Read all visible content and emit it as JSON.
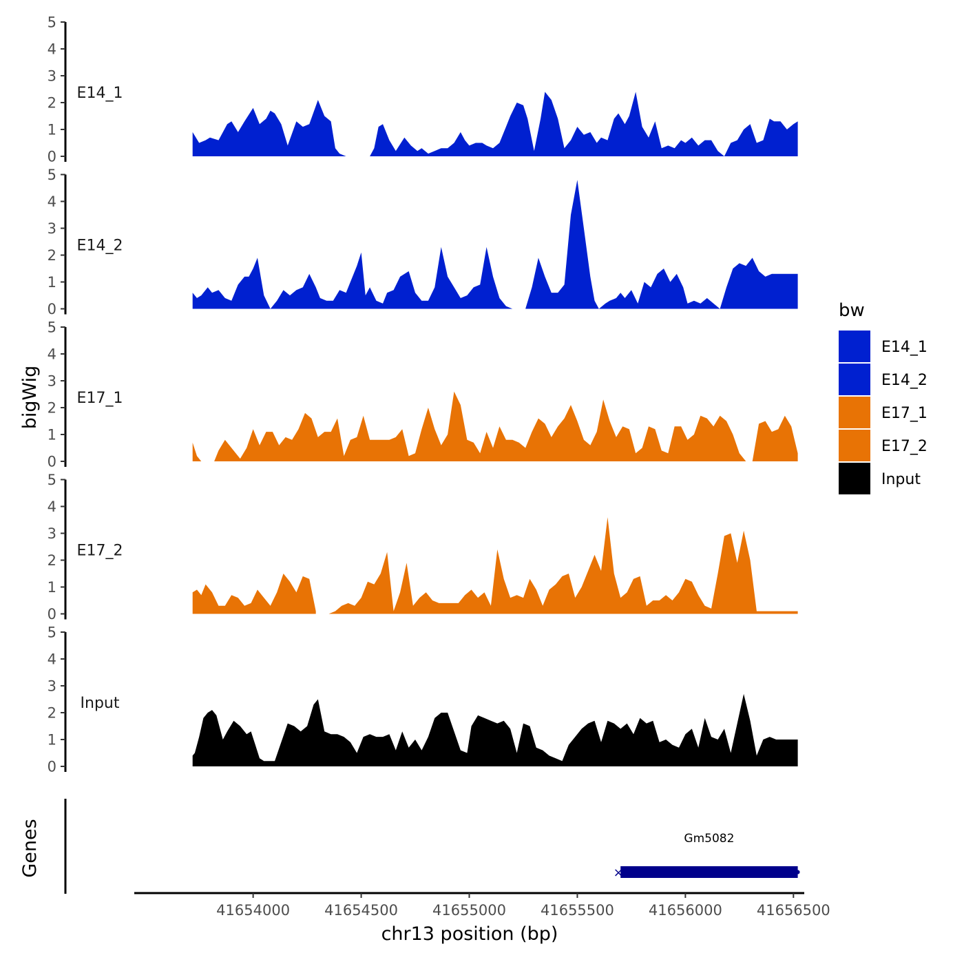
{
  "chart_data": {
    "type": "area",
    "region": "chr13",
    "xlabel": "chr13 position (bp)",
    "ylabel": "bigWig",
    "genes_label": "Genes",
    "xlim": [
      41653450,
      41656550
    ],
    "x_ticks": [
      41654000,
      41654500,
      41655000,
      41655500,
      41656000,
      41656500
    ],
    "x_tick_labels": [
      "41654000",
      "41654500",
      "41655000",
      "41655500",
      "41656000",
      "41656500"
    ],
    "ylim": [
      0,
      5
    ],
    "y_ticks": [
      0,
      1,
      2,
      3,
      4,
      5
    ],
    "y_tick_labels": [
      "0",
      "1",
      "2",
      "3",
      "4",
      "5"
    ],
    "legend": {
      "title": "bw",
      "entries": [
        {
          "name": "E14_1",
          "color": "#0020d0"
        },
        {
          "name": "E14_2",
          "color": "#0020d0"
        },
        {
          "name": "E17_1",
          "color": "#e87305"
        },
        {
          "name": "E17_2",
          "color": "#e87305"
        },
        {
          "name": "Input",
          "color": "#000000"
        }
      ]
    },
    "series": [
      {
        "name": "E14_1",
        "color": "#0020d0",
        "x": [
          41653720,
          41653750,
          41653780,
          41653800,
          41653840,
          41653880,
          41653900,
          41653930,
          41653960,
          41654000,
          41654030,
          41654060,
          41654080,
          41654100,
          41654130,
          41654160,
          41654200,
          41654230,
          41654260,
          41654300,
          41654330,
          41654360,
          41654380,
          41654400,
          41654430,
          41654460,
          41654500,
          41654540,
          41654560,
          41654580,
          41654600,
          41654630,
          41654660,
          41654700,
          41654730,
          41654760,
          41654780,
          41654810,
          41654840,
          41654870,
          41654900,
          41654930,
          41654960,
          41654980,
          41655000,
          41655030,
          41655060,
          41655080,
          41655110,
          41655140,
          41655170,
          41655190,
          41655220,
          41655250,
          41655270,
          41655300,
          41655330,
          41655350,
          41655380,
          41655410,
          41655440,
          41655470,
          41655500,
          41655530,
          41655560,
          41655590,
          41655610,
          41655640,
          41655670,
          41655690,
          41655720,
          41655740,
          41655770,
          41655800,
          41655830,
          41655860,
          41655890,
          41655920,
          41655950,
          41655980,
          41656000,
          41656030,
          41656060,
          41656090,
          41656120,
          41656150,
          41656180,
          41656210,
          41656240,
          41656270,
          41656300,
          41656330,
          41656360,
          41656390,
          41656410,
          41656440,
          41656470,
          41656500,
          41656520
        ],
        "y": [
          0.9,
          0.5,
          0.6,
          0.7,
          0.6,
          1.2,
          1.3,
          0.9,
          1.3,
          1.8,
          1.2,
          1.4,
          1.7,
          1.6,
          1.2,
          0.4,
          1.3,
          1.1,
          1.2,
          2.1,
          1.5,
          1.3,
          0.3,
          0.1,
          0,
          null,
          null,
          0,
          0.3,
          1.1,
          1.2,
          0.6,
          0.2,
          0.7,
          0.4,
          0.2,
          0.3,
          0.1,
          0.2,
          0.3,
          0.3,
          0.5,
          0.9,
          0.6,
          0.4,
          0.5,
          0.5,
          0.4,
          0.3,
          0.5,
          1.1,
          1.5,
          2.0,
          1.9,
          1.4,
          0.2,
          1.4,
          2.4,
          2.1,
          1.4,
          0.3,
          0.6,
          1.1,
          0.8,
          0.9,
          0.5,
          0.7,
          0.6,
          1.4,
          1.6,
          1.2,
          1.5,
          2.4,
          1.1,
          0.7,
          1.3,
          0.3,
          0.4,
          0.3,
          0.6,
          0.5,
          0.7,
          0.4,
          0.6,
          0.6,
          0.2,
          0,
          0.5,
          0.6,
          1.0,
          1.2,
          0.5,
          0.6,
          1.4,
          1.3,
          1.3,
          1.0,
          1.2,
          1.3
        ]
      },
      {
        "name": "E14_2",
        "color": "#0020d0",
        "x": [
          41653720,
          41653740,
          41653760,
          41653790,
          41653810,
          41653840,
          41653870,
          41653900,
          41653930,
          41653960,
          41653980,
          41654000,
          41654020,
          41654050,
          41654080,
          41654110,
          41654140,
          41654170,
          41654200,
          41654230,
          41654260,
          41654290,
          41654310,
          41654340,
          41654370,
          41654400,
          41654430,
          41654460,
          41654480,
          41654500,
          41654520,
          41654540,
          41654570,
          41654600,
          41654620,
          41654650,
          41654680,
          41654720,
          41654750,
          41654780,
          41654810,
          41654840,
          41654870,
          41654900,
          41654930,
          41654960,
          41654990,
          41655020,
          41655050,
          41655080,
          41655110,
          41655140,
          41655170,
          41655200,
          41655230,
          41655260,
          41655290,
          41655320,
          41655350,
          41655380,
          41655410,
          41655440,
          41655470,
          41655500,
          41655530,
          41655560,
          41655580,
          41655600,
          41655630,
          41655650,
          41655680,
          41655700,
          41655720,
          41655750,
          41655780,
          41655810,
          41655840,
          41655870,
          41655900,
          41655930,
          41655960,
          41655990,
          41656010,
          41656040,
          41656070,
          41656100,
          41656130,
          41656160,
          41656190,
          41656220,
          41656250,
          41656280,
          41656310,
          41656340,
          41656370,
          41656400,
          41656430,
          41656460,
          41656490,
          41656520
        ],
        "y": [
          0.6,
          0.4,
          0.5,
          0.8,
          0.6,
          0.7,
          0.4,
          0.3,
          0.9,
          1.2,
          1.2,
          1.5,
          1.9,
          0.5,
          0.0,
          0.3,
          0.7,
          0.5,
          0.7,
          0.8,
          1.3,
          0.8,
          0.4,
          0.3,
          0.3,
          0.7,
          0.6,
          1.2,
          1.6,
          2.1,
          0.5,
          0.8,
          0.3,
          0.2,
          0.6,
          0.7,
          1.2,
          1.4,
          0.6,
          0.3,
          0.3,
          0.8,
          2.3,
          1.2,
          0.8,
          0.4,
          0.5,
          0.8,
          0.9,
          2.3,
          1.2,
          0.4,
          0.1,
          0.0,
          null,
          0.0,
          0.8,
          1.9,
          1.2,
          0.6,
          0.6,
          0.9,
          3.5,
          4.8,
          3.0,
          1.2,
          0.3,
          0.0,
          0.2,
          0.3,
          0.4,
          0.6,
          0.4,
          0.7,
          0.2,
          1.0,
          0.8,
          1.3,
          1.5,
          1.0,
          1.3,
          0.8,
          0.2,
          0.3,
          0.2,
          0.4,
          0.2,
          0.0,
          0.8,
          1.5,
          1.7,
          1.6,
          1.9,
          1.4,
          1.2,
          1.3,
          1.3,
          1.3,
          1.3,
          1.3
        ]
      },
      {
        "name": "E17_1",
        "color": "#e87305",
        "x": [
          41653720,
          41653740,
          41653760,
          41653790,
          41653820,
          41653840,
          41653870,
          41653900,
          41653940,
          41653970,
          41654000,
          41654030,
          41654060,
          41654090,
          41654120,
          41654150,
          41654180,
          41654210,
          41654240,
          41654270,
          41654300,
          41654330,
          41654360,
          41654390,
          41654420,
          41654450,
          41654480,
          41654510,
          41654540,
          41654570,
          41654600,
          41654630,
          41654660,
          41654690,
          41654720,
          41654750,
          41654780,
          41654810,
          41654840,
          41654870,
          41654900,
          41654930,
          41654960,
          41654990,
          41655020,
          41655050,
          41655080,
          41655110,
          41655140,
          41655170,
          41655200,
          41655230,
          41655260,
          41655290,
          41655320,
          41655350,
          41655380,
          41655410,
          41655440,
          41655470,
          41655500,
          41655530,
          41655560,
          41655590,
          41655620,
          41655650,
          41655680,
          41655710,
          41655740,
          41655770,
          41655800,
          41655830,
          41655860,
          41655890,
          41655920,
          41655950,
          41655980,
          41656010,
          41656040,
          41656070,
          41656100,
          41656130,
          41656160,
          41656190,
          41656220,
          41656250,
          41656280,
          41656310,
          41656340,
          41656370,
          41656400,
          41656430,
          41656460,
          41656490,
          41656520
        ],
        "y": [
          0.7,
          0.2,
          0.0,
          null,
          0.0,
          0.4,
          0.8,
          0.5,
          0.1,
          0.5,
          1.2,
          0.6,
          1.1,
          1.1,
          0.6,
          0.9,
          0.8,
          1.2,
          1.8,
          1.6,
          0.9,
          1.1,
          1.1,
          1.6,
          0.2,
          0.8,
          0.9,
          1.7,
          0.8,
          0.8,
          0.8,
          0.8,
          0.9,
          1.2,
          0.2,
          0.3,
          1.2,
          2.0,
          1.2,
          0.6,
          1.0,
          2.6,
          2.1,
          0.8,
          0.7,
          0.3,
          1.1,
          0.5,
          1.3,
          0.8,
          0.8,
          0.7,
          0.5,
          1.1,
          1.6,
          1.4,
          0.9,
          1.3,
          1.6,
          2.1,
          1.5,
          0.8,
          0.6,
          1.1,
          2.3,
          1.5,
          0.9,
          1.3,
          1.2,
          0.3,
          0.5,
          1.3,
          1.2,
          0.4,
          0.3,
          1.3,
          1.3,
          0.8,
          1.0,
          1.7,
          1.6,
          1.3,
          1.7,
          1.5,
          1.0,
          0.3,
          0.0,
          0.0,
          1.4,
          1.5,
          1.1,
          1.2,
          1.7,
          1.3,
          0.3
        ]
      },
      {
        "name": "E17_2",
        "color": "#e87305",
        "x": [
          41653720,
          41653740,
          41653760,
          41653780,
          41653810,
          41653840,
          41653870,
          41653900,
          41653930,
          41653960,
          41653990,
          41654020,
          41654050,
          41654080,
          41654110,
          41654140,
          41654170,
          41654200,
          41654230,
          41654260,
          41654290,
          41654320,
          41654350,
          41654380,
          41654410,
          41654440,
          41654470,
          41654500,
          41654530,
          41654560,
          41654590,
          41654620,
          41654650,
          41654680,
          41654710,
          41654740,
          41654770,
          41654800,
          41654830,
          41654860,
          41654890,
          41654920,
          41654950,
          41654980,
          41655010,
          41655040,
          41655070,
          41655100,
          41655130,
          41655160,
          41655190,
          41655220,
          41655250,
          41655280,
          41655310,
          41655340,
          41655370,
          41655400,
          41655430,
          41655460,
          41655490,
          41655520,
          41655550,
          41655580,
          41655610,
          41655640,
          41655670,
          41655700,
          41655730,
          41655760,
          41655790,
          41655820,
          41655850,
          41655880,
          41655910,
          41655940,
          41655970,
          41656000,
          41656030,
          41656060,
          41656090,
          41656120,
          41656150,
          41656180,
          41656210,
          41656240,
          41656270,
          41656300,
          41656330,
          41656360,
          41656390,
          41656420,
          41656450,
          41656480,
          41656520
        ],
        "y": [
          0.8,
          0.9,
          0.7,
          1.1,
          0.8,
          0.3,
          0.3,
          0.7,
          0.6,
          0.3,
          0.4,
          0.9,
          0.6,
          0.3,
          0.8,
          1.5,
          1.2,
          0.8,
          1.4,
          1.3,
          0.1,
          null,
          0.0,
          0.1,
          0.3,
          0.4,
          0.3,
          0.6,
          1.2,
          1.1,
          1.5,
          2.3,
          0.1,
          0.8,
          1.9,
          0.3,
          0.6,
          0.8,
          0.5,
          0.4,
          0.4,
          0.4,
          0.4,
          0.7,
          0.9,
          0.6,
          0.8,
          0.3,
          2.4,
          1.3,
          0.6,
          0.7,
          0.6,
          1.3,
          0.9,
          0.3,
          0.9,
          1.1,
          1.4,
          1.5,
          0.6,
          1.0,
          1.6,
          2.2,
          1.6,
          3.6,
          1.5,
          0.6,
          0.8,
          1.3,
          1.4,
          0.3,
          0.5,
          0.5,
          0.7,
          0.5,
          0.8,
          1.3,
          1.2,
          0.7,
          0.3,
          0.2,
          1.5,
          2.9,
          3.0,
          1.9,
          3.1,
          2.0,
          0.1,
          0.1,
          0.1,
          0.1,
          0.1,
          0.1,
          0.1
        ]
      },
      {
        "name": "Input",
        "color": "#000000",
        "x": [
          41653720,
          41653730,
          41653750,
          41653770,
          41653790,
          41653810,
          41653830,
          41653860,
          41653880,
          41653910,
          41653940,
          41653970,
          41653990,
          41654010,
          41654030,
          41654050,
          41654070,
          41654100,
          41654130,
          41654160,
          41654190,
          41654220,
          41654250,
          41654280,
          41654300,
          41654330,
          41654360,
          41654390,
          41654420,
          41654450,
          41654480,
          41654510,
          41654540,
          41654570,
          41654600,
          41654630,
          41654660,
          41654690,
          41654720,
          41654750,
          41654780,
          41654810,
          41654840,
          41654870,
          41654900,
          41654930,
          41654960,
          41654990,
          41655010,
          41655040,
          41655070,
          41655100,
          41655130,
          41655160,
          41655190,
          41655220,
          41655250,
          41655280,
          41655310,
          41655340,
          41655370,
          41655400,
          41655430,
          41655460,
          41655490,
          41655520,
          41655550,
          41655580,
          41655610,
          41655640,
          41655670,
          41655700,
          41655730,
          41655760,
          41655790,
          41655820,
          41655850,
          41655880,
          41655910,
          41655940,
          41655970,
          41656000,
          41656030,
          41656060,
          41656090,
          41656120,
          41656150,
          41656180,
          41656210,
          41656240,
          41656270,
          41656300,
          41656330,
          41656360,
          41656390,
          41656420,
          41656450,
          41656480,
          41656520
        ],
        "y": [
          0.4,
          0.5,
          1.1,
          1.8,
          2.0,
          2.1,
          1.9,
          1.0,
          1.3,
          1.7,
          1.5,
          1.2,
          1.3,
          0.8,
          0.3,
          0.2,
          0.2,
          0.2,
          0.9,
          1.6,
          1.5,
          1.3,
          1.5,
          2.3,
          2.5,
          1.3,
          1.2,
          1.2,
          1.1,
          0.9,
          0.5,
          1.1,
          1.2,
          1.1,
          1.1,
          1.2,
          0.6,
          1.3,
          0.7,
          1.0,
          0.6,
          1.1,
          1.8,
          2.0,
          2.0,
          1.3,
          0.6,
          0.5,
          1.5,
          1.9,
          1.8,
          1.7,
          1.6,
          1.7,
          1.4,
          0.5,
          1.6,
          1.5,
          0.7,
          0.6,
          0.4,
          0.3,
          0.2,
          0.8,
          1.1,
          1.4,
          1.6,
          1.7,
          0.9,
          1.7,
          1.6,
          1.4,
          1.6,
          1.2,
          1.8,
          1.6,
          1.7,
          0.9,
          1.0,
          0.8,
          0.7,
          1.2,
          1.4,
          0.7,
          1.8,
          1.1,
          1.0,
          1.4,
          0.5,
          1.6,
          2.7,
          1.7,
          0.4,
          1.0,
          1.1,
          1.0,
          1.0,
          1.0,
          1.0
        ]
      }
    ],
    "genes": [
      {
        "name": "Gm5082",
        "start": 41655700,
        "end": 41656520,
        "color": "#00008b",
        "strand_mark": "×"
      }
    ]
  }
}
